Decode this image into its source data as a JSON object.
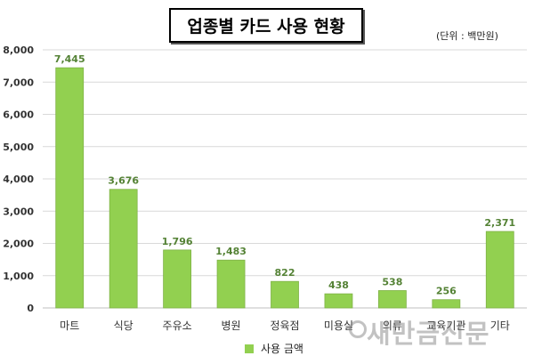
{
  "title": "업종별 카드 사용 현황",
  "unit": "(단위 : 백만원)",
  "watermark": "새만금신문",
  "colors": {
    "bar": "#92D050",
    "label": "#548235",
    "grid": "#d9d9d9",
    "axis_text": "#333333"
  },
  "chart_data": {
    "type": "bar",
    "title": "업종별 카드 사용 현황",
    "categories": [
      "마트",
      "식당",
      "주유소",
      "병원",
      "정육점",
      "미용실",
      "의류",
      "교육기관",
      "기타"
    ],
    "series": [
      {
        "name": "사용 금액",
        "values": [
          7445,
          3676,
          1796,
          1483,
          822,
          438,
          538,
          256,
          2371
        ]
      }
    ],
    "value_labels": [
      "7,445",
      "3,676",
      "1,796",
      "1,483",
      "822",
      "438",
      "538",
      "256",
      "2,371"
    ],
    "yticks": [
      "0",
      "1,000",
      "2,000",
      "3,000",
      "4,000",
      "5,000",
      "6,000",
      "7,000",
      "8,000"
    ],
    "ylim": [
      0,
      8000
    ],
    "grid": true,
    "legend_position": "bottom"
  },
  "legend": {
    "label": "사용 금액"
  }
}
